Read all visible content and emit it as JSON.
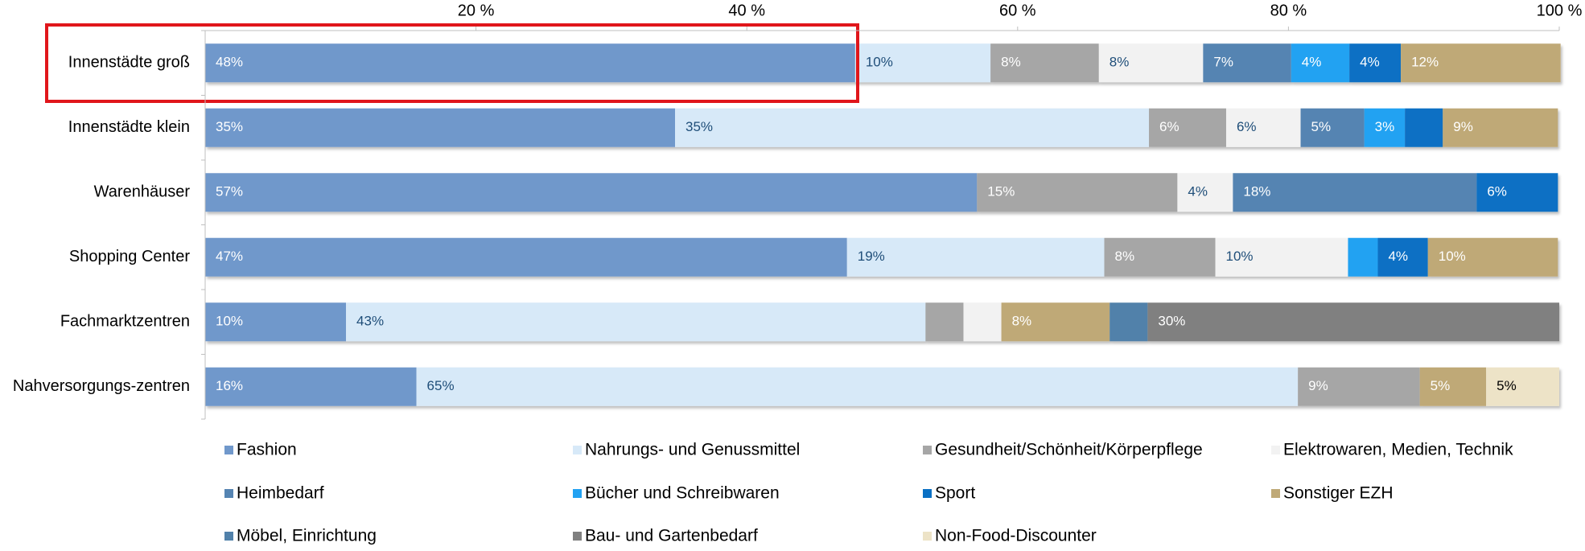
{
  "chart_data": {
    "type": "stacked-bar-horizontal",
    "categories": [
      "Innenstädte groß",
      "Innenstädte klein",
      "Warenhäuser",
      "Shopping Center",
      "Fachmarktzentren",
      "Nahversorgungs-zentren"
    ],
    "xlim": [
      0,
      100
    ],
    "xticks": [
      {
        "value": 20,
        "label": "20 %"
      },
      {
        "value": 40,
        "label": "40 %"
      },
      {
        "value": 60,
        "label": "60 %"
      },
      {
        "value": 80,
        "label": "80 %"
      },
      {
        "value": 100,
        "label": "100 %"
      }
    ],
    "grid": false,
    "series": [
      {
        "name": "Fashion",
        "color": "#7098cb",
        "label_color": "#ffffff",
        "values": [
          48,
          34.7,
          57,
          47.4,
          10.4,
          15.6
        ],
        "value_labels": [
          "48%",
          "35%",
          "57%",
          "47%",
          "10%",
          "16%"
        ]
      },
      {
        "name": "Nahrungs- und Genussmittel",
        "color": "#d7e9f8",
        "label_color": "#1f4e79",
        "values": [
          10,
          35,
          0,
          19,
          42.8,
          65.1
        ],
        "value_labels": [
          "10%",
          "35%",
          null,
          "19%",
          "43%",
          "65%"
        ]
      },
      {
        "name": "Gesundheit/Schönheit/Körperpflege",
        "color": "#a6a6a6",
        "label_color": "#ffffff",
        "values": [
          8,
          5.7,
          14.8,
          8.2,
          2.8,
          9
        ],
        "value_labels": [
          "8%",
          "6%",
          "15%",
          "8%",
          null,
          "9%"
        ]
      },
      {
        "name": "Elektrowaren, Medien, Technik",
        "color": "#f2f2f2",
        "label_color": "#1f4e79",
        "values": [
          7.7,
          5.5,
          4.1,
          9.8,
          2.8,
          0
        ],
        "value_labels": [
          "8%",
          "6%",
          "4%",
          "10%",
          null,
          null
        ]
      },
      {
        "name": "Heimbedarf",
        "color": "#5584b2",
        "label_color": "#ffffff",
        "values": [
          6.5,
          4.7,
          18,
          0,
          0,
          0
        ],
        "value_labels": [
          "7%",
          "5%",
          "18%",
          null,
          null,
          null
        ]
      },
      {
        "name": "Bücher und Schreibwaren",
        "color": "#22a2f2",
        "label_color": "#ffffff",
        "values": [
          4.3,
          3,
          0,
          2.2,
          0,
          0
        ],
        "value_labels": [
          "4%",
          "3%",
          null,
          null,
          null,
          null
        ]
      },
      {
        "name": "Sport",
        "color": "#0a70c4",
        "label_color": "#ffffff",
        "values": [
          3.8,
          2.8,
          6,
          3.7,
          0,
          0
        ],
        "value_labels": [
          "4%",
          null,
          "6%",
          "4%",
          null,
          null
        ]
      },
      {
        "name": "Sonstiger EZH",
        "color": "#bfa977",
        "label_color": "#ffffff",
        "values": [
          11.8,
          8.5,
          0,
          9.6,
          8,
          4.9
        ],
        "value_labels": [
          "12%",
          "9%",
          null,
          "10%",
          "8%",
          "5%"
        ]
      },
      {
        "name": "Möbel, Einrichtung",
        "color": "#5181aa",
        "label_color": "#ffffff",
        "values": [
          0,
          0,
          0,
          0,
          2.8,
          0
        ],
        "value_labels": [
          null,
          null,
          null,
          null,
          null,
          null
        ]
      },
      {
        "name": "Bau- und Gartenbedarf",
        "color": "#808080",
        "label_color": "#ffffff",
        "values": [
          0,
          0,
          0,
          0,
          30.4,
          0
        ],
        "value_labels": [
          null,
          null,
          null,
          null,
          "30%",
          null
        ]
      },
      {
        "name": "Non-Food-Discounter",
        "color": "#ede3c7",
        "label_color": "#000000",
        "values": [
          0,
          0,
          0,
          0,
          0,
          5.4
        ],
        "value_labels": [
          null,
          null,
          null,
          null,
          null,
          "5%"
        ]
      }
    ]
  }
}
